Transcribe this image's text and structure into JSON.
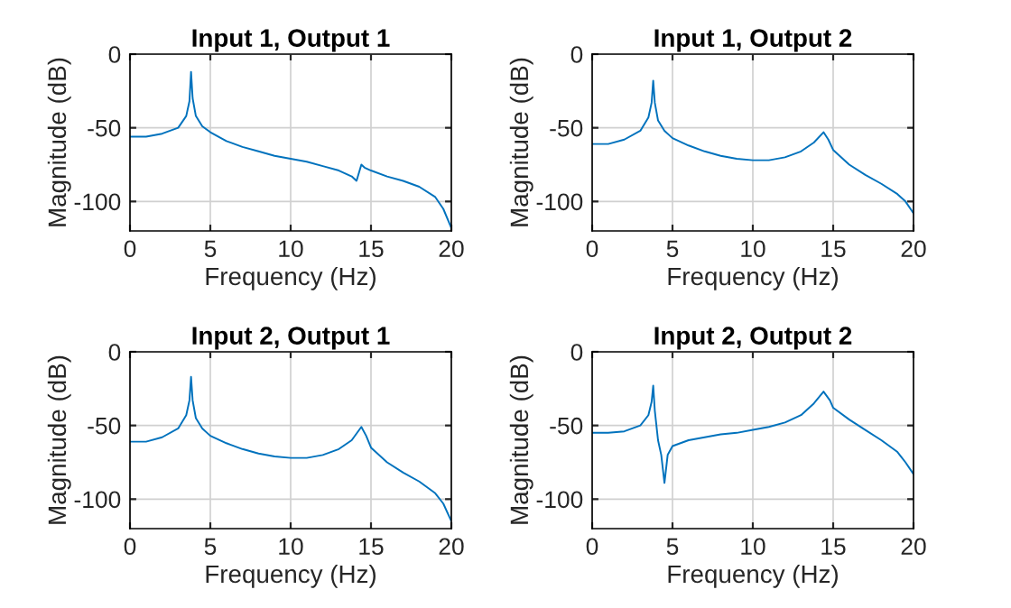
{
  "chart_data": [
    {
      "type": "line",
      "title": "Input 1, Output 1",
      "xlabel": "Frequency (Hz)",
      "ylabel": "Magnitude (dB)",
      "xlim": [
        0,
        20
      ],
      "ylim": [
        -120,
        0
      ],
      "xticks": [
        0,
        5,
        10,
        15,
        20
      ],
      "yticks": [
        -100,
        -50,
        0
      ],
      "grid": true,
      "series": [
        {
          "color": "#0072bd",
          "x": [
            0,
            1,
            2,
            3,
            3.5,
            3.7,
            3.8,
            3.9,
            4.1,
            4.5,
            5,
            6,
            7,
            8,
            9,
            10,
            11,
            12,
            13,
            13.8,
            14.1,
            14.4,
            14.6,
            15,
            16,
            17,
            18,
            19,
            19.5,
            20
          ],
          "values": [
            -56,
            -56,
            -54,
            -50,
            -42,
            -32,
            -12,
            -30,
            -42,
            -49,
            -53,
            -59,
            -63,
            -66,
            -69,
            -71,
            -73,
            -76,
            -79,
            -83,
            -86,
            -75,
            -77,
            -79,
            -83,
            -86,
            -90,
            -97,
            -105,
            -118
          ]
        }
      ]
    },
    {
      "type": "line",
      "title": "Input 1, Output 2",
      "xlabel": "Frequency (Hz)",
      "ylabel": "Magnitude (dB)",
      "xlim": [
        0,
        20
      ],
      "ylim": [
        -120,
        0
      ],
      "xticks": [
        0,
        5,
        10,
        15,
        20
      ],
      "yticks": [
        -100,
        -50,
        0
      ],
      "grid": true,
      "series": [
        {
          "color": "#0072bd",
          "x": [
            0,
            1,
            2,
            3,
            3.5,
            3.7,
            3.8,
            3.9,
            4.1,
            4.5,
            5,
            6,
            7,
            8,
            9,
            10,
            11,
            12,
            13,
            13.8,
            14.4,
            14.7,
            15,
            16,
            17,
            18,
            19,
            19.5,
            20
          ],
          "values": [
            -61,
            -61,
            -58,
            -52,
            -43,
            -33,
            -18,
            -33,
            -45,
            -52,
            -57,
            -62,
            -66,
            -69,
            -71,
            -72,
            -72,
            -70,
            -66,
            -60,
            -53,
            -58,
            -65,
            -75,
            -82,
            -88,
            -95,
            -100,
            -108
          ]
        }
      ]
    },
    {
      "type": "line",
      "title": "Input 2, Output 1",
      "xlabel": "Frequency (Hz)",
      "ylabel": "Magnitude (dB)",
      "xlim": [
        0,
        20
      ],
      "ylim": [
        -120,
        0
      ],
      "xticks": [
        0,
        5,
        10,
        15,
        20
      ],
      "yticks": [
        -100,
        -50,
        0
      ],
      "grid": true,
      "series": [
        {
          "color": "#0072bd",
          "x": [
            0,
            1,
            2,
            3,
            3.5,
            3.7,
            3.8,
            3.9,
            4.1,
            4.5,
            5,
            6,
            7,
            8,
            9,
            10,
            11,
            12,
            13,
            13.8,
            14.4,
            14.7,
            15,
            16,
            17,
            18,
            19,
            19.5,
            20
          ],
          "values": [
            -61,
            -61,
            -58,
            -52,
            -43,
            -33,
            -17,
            -33,
            -45,
            -52,
            -57,
            -62,
            -66,
            -69,
            -71,
            -72,
            -72,
            -70,
            -66,
            -60,
            -51,
            -57,
            -65,
            -75,
            -82,
            -88,
            -96,
            -103,
            -115
          ]
        }
      ]
    },
    {
      "type": "line",
      "title": "Input 2, Output 2",
      "xlabel": "Frequency (Hz)",
      "ylabel": "Magnitude (dB)",
      "xlim": [
        0,
        20
      ],
      "ylim": [
        -120,
        0
      ],
      "xticks": [
        0,
        5,
        10,
        15,
        20
      ],
      "yticks": [
        -100,
        -50,
        0
      ],
      "grid": true,
      "series": [
        {
          "color": "#0072bd",
          "x": [
            0,
            1,
            2,
            3,
            3.5,
            3.7,
            3.8,
            3.9,
            4.1,
            4.3,
            4.5,
            4.7,
            5,
            6,
            7,
            8,
            9,
            10,
            11,
            12,
            13,
            13.8,
            14.4,
            14.8,
            15,
            16,
            17,
            18,
            19,
            19.5,
            20
          ],
          "values": [
            -55,
            -55,
            -54,
            -50,
            -43,
            -34,
            -23,
            -40,
            -60,
            -70,
            -89,
            -70,
            -64,
            -60,
            -58,
            -56,
            -55,
            -53,
            -51,
            -48,
            -43,
            -35,
            -27,
            -33,
            -38,
            -46,
            -53,
            -60,
            -68,
            -75,
            -83
          ]
        }
      ]
    }
  ]
}
